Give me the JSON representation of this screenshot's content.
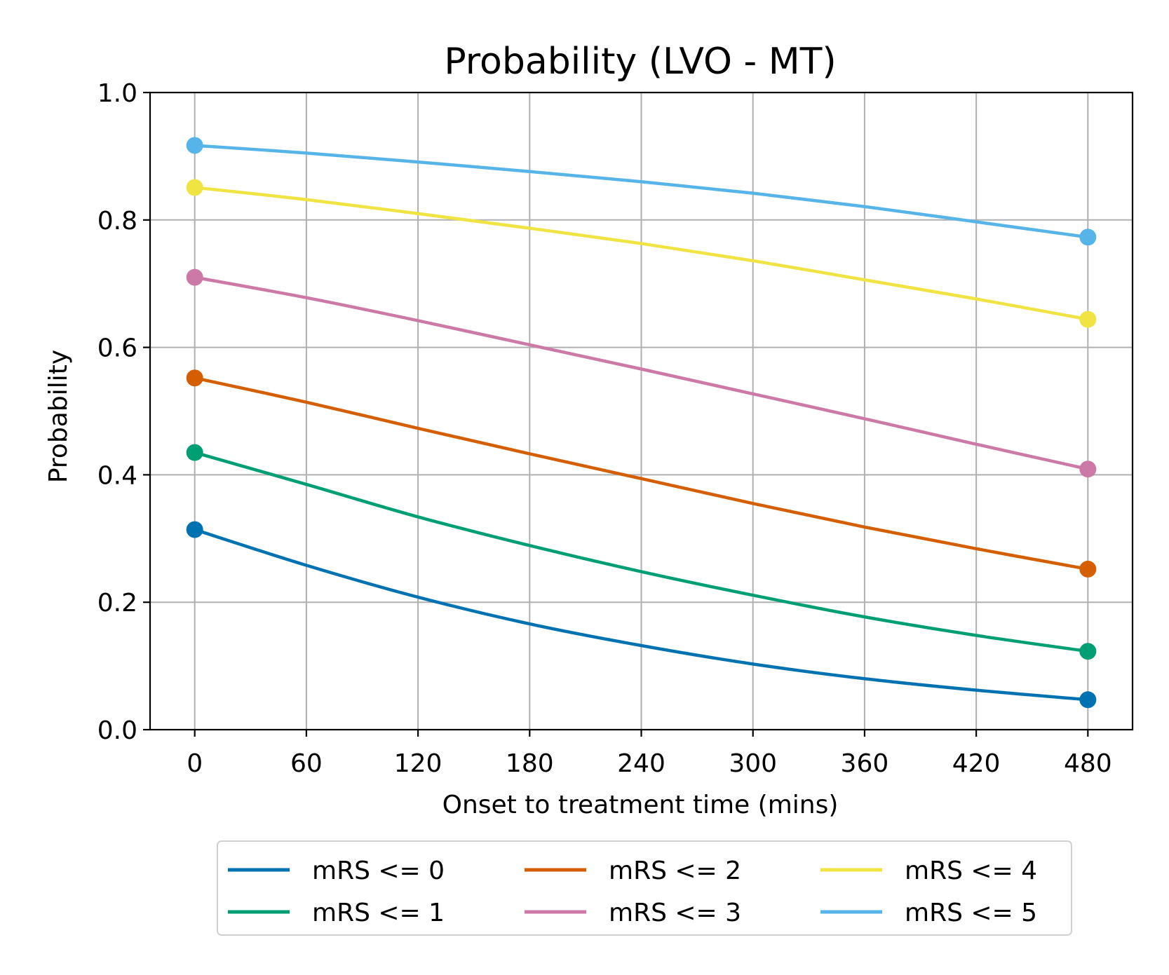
{
  "chart_data": {
    "type": "line",
    "title": "Probability (LVO - MT)",
    "xlabel": "Onset to treatment time (mins)",
    "ylabel": "Probability",
    "xlim": [
      -24,
      504
    ],
    "ylim": [
      0.0,
      1.0
    ],
    "xticks": [
      0,
      60,
      120,
      180,
      240,
      300,
      360,
      420,
      480
    ],
    "xtick_labels": [
      "0",
      "60",
      "120",
      "180",
      "240",
      "300",
      "360",
      "420",
      "480"
    ],
    "yticks": [
      0.0,
      0.2,
      0.4,
      0.6,
      0.8,
      1.0
    ],
    "ytick_labels": [
      "0.0",
      "0.2",
      "0.4",
      "0.6",
      "0.8",
      "1.0"
    ],
    "grid": true,
    "legend_position": "below",
    "legend_columns": 3,
    "x": [
      0,
      60,
      120,
      180,
      240,
      300,
      360,
      420,
      480
    ],
    "series": [
      {
        "name": "mRS <= 0",
        "color": "#0072b2",
        "values": [
          0.314,
          0.258,
          0.208,
          0.166,
          0.132,
          0.103,
          0.08,
          0.062,
          0.047
        ]
      },
      {
        "name": "mRS <= 1",
        "color": "#009e73",
        "values": [
          0.435,
          0.385,
          0.334,
          0.289,
          0.248,
          0.211,
          0.177,
          0.148,
          0.123
        ]
      },
      {
        "name": "mRS <= 2",
        "color": "#d55e00",
        "values": [
          0.552,
          0.514,
          0.473,
          0.433,
          0.394,
          0.355,
          0.318,
          0.284,
          0.252
        ]
      },
      {
        "name": "mRS <= 3",
        "color": "#cc79a7",
        "values": [
          0.71,
          0.678,
          0.642,
          0.604,
          0.566,
          0.527,
          0.488,
          0.448,
          0.409
        ]
      },
      {
        "name": "mRS <= 4",
        "color": "#f0e442",
        "values": [
          0.851,
          0.832,
          0.81,
          0.787,
          0.763,
          0.736,
          0.706,
          0.676,
          0.644
        ]
      },
      {
        "name": "mRS <= 5",
        "color": "#56b4e9",
        "values": [
          0.917,
          0.905,
          0.891,
          0.876,
          0.86,
          0.842,
          0.821,
          0.797,
          0.773
        ]
      }
    ]
  }
}
